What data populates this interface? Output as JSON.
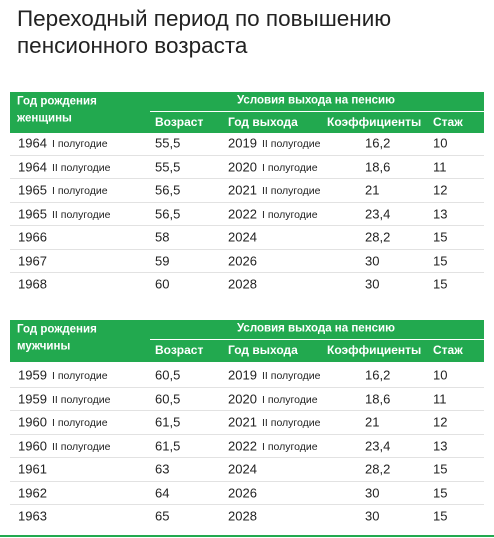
{
  "title": [
    "Переходный период по повышению",
    "пенсионного возраста"
  ],
  "tables": [
    {
      "header": {
        "group": [
          "Год рождения",
          "женщины"
        ],
        "conditions": "Условия выхода на пенсию",
        "columns": [
          "Возраст",
          "Год выхода",
          "Коэффициенты",
          "Стаж"
        ]
      },
      "rows": [
        [
          "1964",
          "I полугодие",
          "55,5",
          "2019",
          "II полугодие",
          "16,2",
          "10"
        ],
        [
          "1964",
          "II полугодие",
          "55,5",
          "2020",
          "I полугодие",
          "18,6",
          "11"
        ],
        [
          "1965",
          "I полугодие",
          "56,5",
          "2021",
          "II полугодие",
          "21",
          "12"
        ],
        [
          "1965",
          "II полугодие",
          "56,5",
          "2022",
          "I полугодие",
          "23,4",
          "13"
        ],
        [
          "1966",
          null,
          "58",
          "2024",
          null,
          "28,2",
          "15"
        ],
        [
          "1967",
          null,
          "59",
          "2026",
          null,
          "30",
          "15"
        ],
        [
          "1968",
          null,
          "60",
          "2028",
          null,
          "30",
          "15"
        ]
      ]
    },
    {
      "header": {
        "group": [
          "Год рождения",
          "мужчины"
        ],
        "conditions": "Условия выхода на пенсию",
        "columns": [
          "Возраст",
          "Год выхода",
          "Коэффициенты",
          "Стаж"
        ]
      },
      "rows": [
        [
          "1959",
          "I полугодие",
          "60,5",
          "2019",
          "II полугодие",
          "16,2",
          "10"
        ],
        [
          "1959",
          "II полугодие",
          "60,5",
          "2020",
          "I полугодие",
          "18,6",
          "11"
        ],
        [
          "1960",
          "I полугодие",
          "61,5",
          "2021",
          "II полугодие",
          "21",
          "12"
        ],
        [
          "1960",
          "II полугодие",
          "61,5",
          "2022",
          "I полугодие",
          "23,4",
          "13"
        ],
        [
          "1961",
          null,
          "63",
          "2024",
          null,
          "28,2",
          "15"
        ],
        [
          "1962",
          null,
          "64",
          "2026",
          null,
          "30",
          "15"
        ],
        [
          "1963",
          null,
          "65",
          "2028",
          null,
          "30",
          "15"
        ]
      ]
    }
  ]
}
